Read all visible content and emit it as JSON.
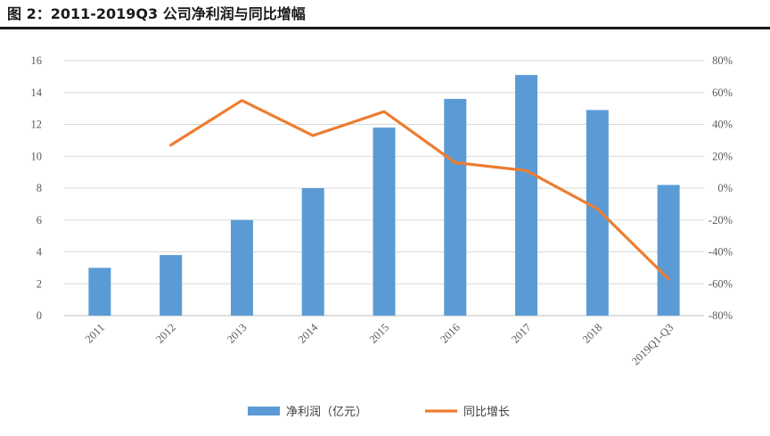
{
  "figure_title": "图 2：2011-2019Q3 公司净利润与同比增幅",
  "chart_data": {
    "type": "bar",
    "categories": [
      "2011",
      "2012",
      "2013",
      "2014",
      "2015",
      "2016",
      "2017",
      "2018",
      "2019Q1-Q3"
    ],
    "series": [
      {
        "name": "净利润（亿元）",
        "type": "bar",
        "axis": "left",
        "color": "#5b9bd5",
        "values": [
          3.0,
          3.8,
          6.0,
          8.0,
          11.8,
          13.6,
          15.1,
          12.9,
          8.2
        ]
      },
      {
        "name": "同比增长",
        "type": "line",
        "axis": "right",
        "color": "#ed7d31",
        "values": [
          null,
          27,
          55,
          33,
          48,
          16,
          11,
          -13,
          -57
        ]
      }
    ],
    "y_left": {
      "min": 0,
      "max": 16,
      "step": 2,
      "ticks": [
        "0",
        "2",
        "4",
        "6",
        "8",
        "10",
        "12",
        "14",
        "16"
      ]
    },
    "y_right": {
      "min": -80,
      "max": 80,
      "step": 20,
      "ticks": [
        "-80%",
        "-60%",
        "-40%",
        "-20%",
        "0%",
        "20%",
        "40%",
        "60%",
        "80%"
      ]
    },
    "grid": true,
    "legend": "bottom"
  }
}
